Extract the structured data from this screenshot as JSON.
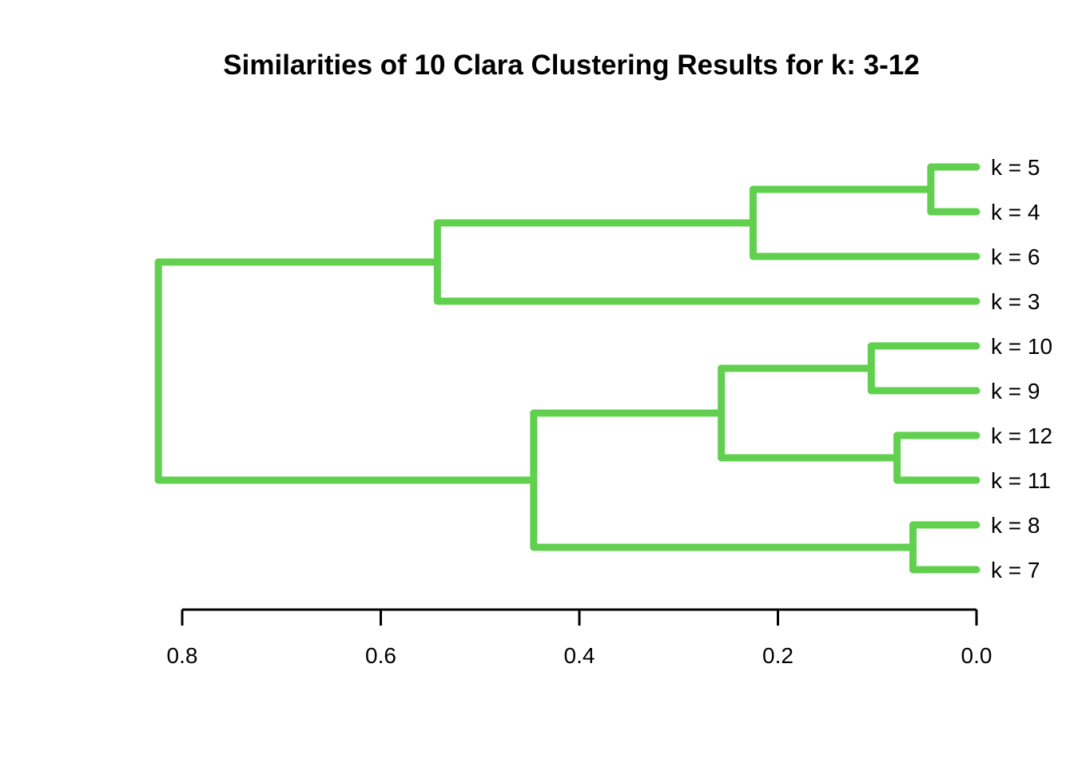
{
  "chart_data": {
    "type": "dendrogram",
    "orientation": "horizontal",
    "title": "Similarities of 10 Clara Clustering Results for k: 3-12",
    "colors": {
      "branch": "#61D04F",
      "text": "#000000",
      "axis": "#000000",
      "background": "#FFFFFF"
    },
    "leaves": [
      "k = 5",
      "k = 4",
      "k = 6",
      "k = 3",
      "k = 10",
      "k = 9",
      "k = 12",
      "k = 11",
      "k = 8",
      "k = 7"
    ],
    "tree": {
      "h": 0.824,
      "children": [
        {
          "h": 0.543,
          "children": [
            {
              "h": 0.225,
              "children": [
                {
                  "h": 0.046,
                  "children": [
                    {
                      "leaf": 0
                    },
                    {
                      "leaf": 1
                    }
                  ]
                },
                {
                  "leaf": 2
                }
              ]
            },
            {
              "leaf": 3
            }
          ]
        },
        {
          "h": 0.446,
          "children": [
            {
              "h": 0.257,
              "children": [
                {
                  "h": 0.106,
                  "children": [
                    {
                      "leaf": 4
                    },
                    {
                      "leaf": 5
                    }
                  ]
                },
                {
                  "h": 0.08,
                  "children": [
                    {
                      "leaf": 6
                    },
                    {
                      "leaf": 7
                    }
                  ]
                }
              ]
            },
            {
              "h": 0.064,
              "children": [
                {
                  "leaf": 8
                },
                {
                  "leaf": 9
                }
              ]
            }
          ]
        }
      ]
    },
    "axis": {
      "max": 0.8,
      "min": 0.0,
      "ticks": [
        {
          "label": "0.8",
          "value": 0.8
        },
        {
          "label": "0.6",
          "value": 0.6
        },
        {
          "label": "0.4",
          "value": 0.4
        },
        {
          "label": "0.2",
          "value": 0.2
        },
        {
          "label": "0.0",
          "value": 0.0
        }
      ]
    }
  }
}
